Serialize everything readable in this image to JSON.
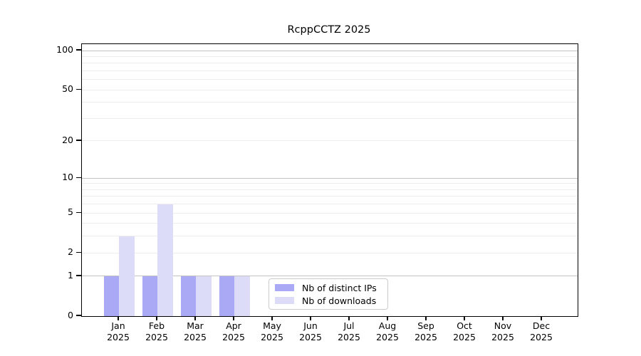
{
  "chart_data": {
    "type": "bar",
    "title": "RcppCCTZ 2025",
    "categories": [
      "Jan",
      "Feb",
      "Mar",
      "Apr",
      "May",
      "Jun",
      "Jul",
      "Aug",
      "Sep",
      "Oct",
      "Nov",
      "Dec"
    ],
    "x_year": "2025",
    "series": [
      {
        "name": "Nb of distinct IPs",
        "color": "#a9a9f6",
        "values": [
          1,
          1,
          1,
          1,
          0,
          0,
          0,
          0,
          0,
          0,
          0,
          0
        ]
      },
      {
        "name": "Nb of downloads",
        "color": "#dcdcf9",
        "values": [
          3,
          6,
          1,
          1,
          0,
          0,
          0,
          0,
          0,
          0,
          0,
          0
        ]
      }
    ],
    "y_axis": {
      "scale": "log1p",
      "tick_values": [
        100,
        50,
        20,
        10,
        5,
        2,
        1,
        0
      ],
      "tick_labels": [
        "100",
        "50",
        "20",
        "10",
        "5",
        "2",
        "1",
        "0"
      ],
      "max": 112,
      "major_gridlines": [
        1,
        10,
        100
      ],
      "minor_gridlines": [
        2,
        3,
        4,
        5,
        6,
        7,
        8,
        9,
        20,
        30,
        40,
        50,
        60,
        70,
        80,
        90
      ]
    },
    "legend": {
      "position": "bottom-center",
      "entries": [
        "Nb of distinct IPs",
        "Nb of downloads"
      ]
    },
    "grid": true,
    "xlabel": "",
    "ylabel": ""
  }
}
